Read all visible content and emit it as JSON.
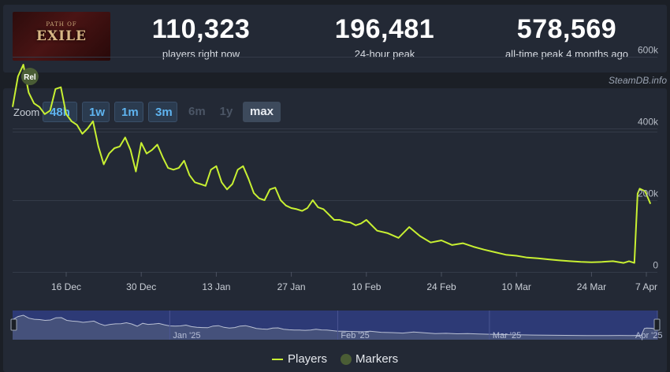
{
  "logo": {
    "sub": "PATH OF",
    "main": "EXILE",
    "alt": "Path of Exile 2 logo"
  },
  "stats": [
    {
      "value": "110,323",
      "label": "players right now"
    },
    {
      "value": "196,481",
      "label": "24-hour peak"
    },
    {
      "value": "578,569",
      "label": "all-time peak 4 months ago"
    }
  ],
  "credit": "SteamDB.info",
  "zoom": {
    "label": "Zoom",
    "buttons": [
      {
        "label": "48h",
        "state": "active"
      },
      {
        "label": "1w",
        "state": "active"
      },
      {
        "label": "1m",
        "state": "active"
      },
      {
        "label": "3m",
        "state": "active"
      },
      {
        "label": "6m",
        "state": "disabled"
      },
      {
        "label": "1y",
        "state": "disabled"
      },
      {
        "label": "max",
        "state": "selected"
      }
    ]
  },
  "legend": {
    "players": "Players",
    "markers": "Markers"
  },
  "colors": {
    "line": "#c8f032",
    "accent": "#5fb4f0",
    "navigator": "#2d3a76",
    "marker": "#4a5d35"
  },
  "chart_data": {
    "type": "line",
    "title": "",
    "xlabel": "",
    "ylabel": "",
    "ylim": [
      0,
      700000
    ],
    "xlim": [
      0,
      119
    ],
    "x_unit": "days since 6 Dec 2024",
    "y_ticks": [
      {
        "value": 0,
        "label": "0"
      },
      {
        "value": 200000,
        "label": "200k"
      },
      {
        "value": 400000,
        "label": "400k"
      },
      {
        "value": 600000,
        "label": "600k"
      }
    ],
    "x_ticks": [
      {
        "day": 10,
        "label": "16 Dec"
      },
      {
        "day": 24,
        "label": "30 Dec"
      },
      {
        "day": 38,
        "label": "13 Jan"
      },
      {
        "day": 52,
        "label": "27 Jan"
      },
      {
        "day": 66,
        "label": "10 Feb"
      },
      {
        "day": 80,
        "label": "24 Feb"
      },
      {
        "day": 94,
        "label": "10 Mar"
      },
      {
        "day": 108,
        "label": "24 Mar"
      },
      {
        "day": 122,
        "label": "7 Apr"
      }
    ],
    "marker": {
      "label": "Rel",
      "day": 1.6,
      "value": 545000
    },
    "navigator_labels": [
      {
        "day": 29,
        "label": "Jan '25"
      },
      {
        "day": 60,
        "label": "Feb '25"
      },
      {
        "day": 88,
        "label": "Mar '25"
      },
      {
        "day": 119,
        "label": "Apr '25"
      }
    ],
    "series": [
      {
        "name": "Players",
        "x": [
          0,
          1,
          2,
          3,
          4,
          5,
          6,
          7,
          8,
          9,
          10,
          11,
          12,
          13,
          14,
          15,
          16,
          17,
          18,
          19,
          20,
          21,
          22,
          23,
          24,
          25,
          26,
          27,
          28,
          29,
          30,
          31,
          32,
          33,
          34,
          35,
          36,
          37,
          38,
          39,
          40,
          41,
          42,
          43,
          44,
          45,
          46,
          47,
          48,
          49,
          50,
          51,
          52,
          53,
          54,
          55,
          56,
          57,
          58,
          59,
          60,
          61,
          62,
          63,
          64,
          65,
          66,
          68,
          70,
          72,
          74,
          76,
          78,
          80,
          82,
          84,
          86,
          88,
          90,
          92,
          94,
          96,
          98,
          100,
          102,
          104,
          106,
          108,
          110,
          112,
          114,
          115,
          116,
          116.6,
          117,
          118,
          119
        ],
        "y": [
          460000,
          545000,
          578000,
          500000,
          470000,
          460000,
          440000,
          450000,
          510000,
          515000,
          440000,
          420000,
          410000,
          385000,
          400000,
          420000,
          350000,
          300000,
          330000,
          345000,
          350000,
          375000,
          340000,
          280000,
          360000,
          330000,
          340000,
          355000,
          320000,
          290000,
          285000,
          290000,
          310000,
          270000,
          250000,
          245000,
          240000,
          285000,
          295000,
          250000,
          230000,
          245000,
          285000,
          295000,
          260000,
          220000,
          205000,
          200000,
          230000,
          235000,
          200000,
          185000,
          178000,
          175000,
          170000,
          178000,
          200000,
          180000,
          175000,
          160000,
          145000,
          145000,
          140000,
          138000,
          130000,
          135000,
          145000,
          115000,
          108000,
          95000,
          125000,
          100000,
          82000,
          88000,
          75000,
          80000,
          70000,
          62000,
          55000,
          48000,
          45000,
          40000,
          38000,
          35000,
          32000,
          30000,
          28000,
          27000,
          28000,
          30000,
          25000,
          30000,
          25000,
          218000,
          232000,
          225000,
          190000
        ]
      }
    ]
  }
}
